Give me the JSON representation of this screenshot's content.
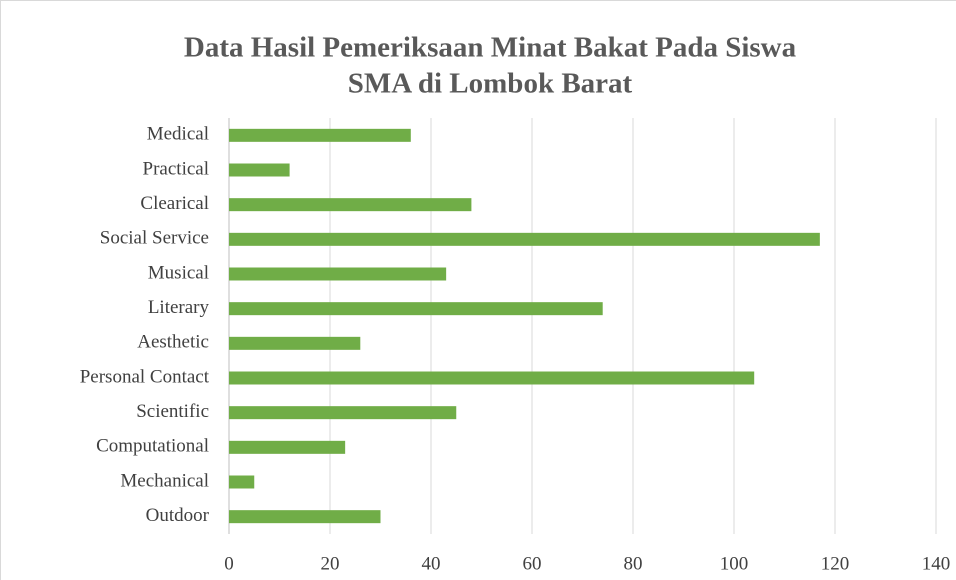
{
  "chart_data": {
    "type": "bar",
    "orientation": "horizontal",
    "title": [
      "Data Hasil Pemeriksaan Minat Bakat Pada Siswa",
      "SMA di Lombok Barat"
    ],
    "categories": [
      "Medical",
      "Practical",
      "Clearical",
      "Social Service",
      "Musical",
      "Literary",
      "Aesthetic",
      "Personal Contact",
      "Scientific",
      "Computational",
      "Mechanical",
      "Outdoor"
    ],
    "values": [
      36,
      12,
      48,
      117,
      43,
      74,
      26,
      104,
      45,
      23,
      5,
      30
    ],
    "color": "#70ad47",
    "xlim": [
      0,
      140
    ],
    "xticks": [
      0,
      20,
      40,
      60,
      80,
      100,
      120,
      140
    ],
    "grid": true
  }
}
